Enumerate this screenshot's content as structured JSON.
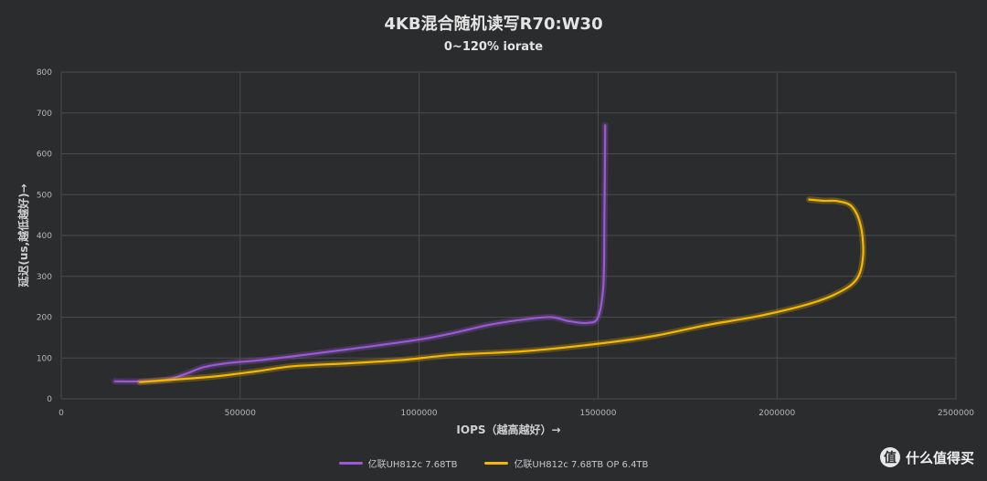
{
  "chart_data": {
    "type": "line",
    "title": "4KB混合随机读写R70:W30",
    "subtitle": "0~120% iorate",
    "xlabel": "IOPS（越高越好）→",
    "ylabel": "延迟(us,越低越好)→",
    "xlim": [
      0,
      2500000
    ],
    "ylim": [
      0,
      800
    ],
    "x_ticks": [
      "0",
      "500000",
      "1000000",
      "1500000",
      "2000000",
      "2500000"
    ],
    "y_ticks": [
      "0",
      "100",
      "200",
      "300",
      "400",
      "500",
      "600",
      "700",
      "800"
    ],
    "grid": true,
    "legend_position": "bottom",
    "series": [
      {
        "name": "亿联UH812c 7.68TB",
        "color": "#9b59d6",
        "points": [
          [
            150000,
            43
          ],
          [
            230000,
            43
          ],
          [
            300000,
            48
          ],
          [
            350000,
            62
          ],
          [
            400000,
            78
          ],
          [
            470000,
            88
          ],
          [
            560000,
            95
          ],
          [
            700000,
            110
          ],
          [
            850000,
            127
          ],
          [
            1000000,
            145
          ],
          [
            1100000,
            162
          ],
          [
            1200000,
            182
          ],
          [
            1300000,
            195
          ],
          [
            1370000,
            200
          ],
          [
            1420000,
            190
          ],
          [
            1470000,
            186
          ],
          [
            1500000,
            200
          ],
          [
            1515000,
            280
          ],
          [
            1518000,
            450
          ],
          [
            1520000,
            670
          ]
        ]
      },
      {
        "name": "亿联UH812c 7.68TB OP 6.4TB",
        "color": "#f5b800",
        "points": [
          [
            220000,
            41
          ],
          [
            300000,
            46
          ],
          [
            430000,
            55
          ],
          [
            550000,
            68
          ],
          [
            650000,
            80
          ],
          [
            800000,
            87
          ],
          [
            950000,
            95
          ],
          [
            1100000,
            108
          ],
          [
            1300000,
            117
          ],
          [
            1500000,
            135
          ],
          [
            1650000,
            153
          ],
          [
            1800000,
            180
          ],
          [
            1950000,
            203
          ],
          [
            2080000,
            230
          ],
          [
            2160000,
            255
          ],
          [
            2220000,
            290
          ],
          [
            2240000,
            345
          ],
          [
            2235000,
            420
          ],
          [
            2210000,
            470
          ],
          [
            2170000,
            484
          ],
          [
            2130000,
            485
          ],
          [
            2090000,
            488
          ]
        ]
      }
    ]
  },
  "watermark": {
    "logo_char": "值",
    "text": "什么值得买"
  }
}
